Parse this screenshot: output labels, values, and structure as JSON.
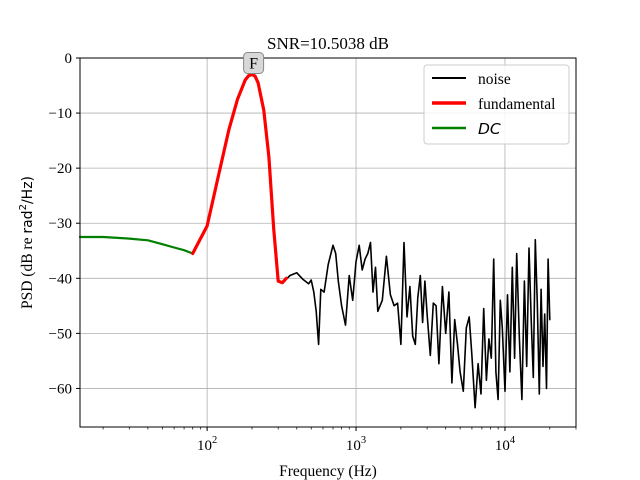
{
  "chart_data": {
    "type": "line",
    "title": "SNR=10.5038 dB",
    "xlabel": "Frequency (Hz)",
    "ylabel": {
      "prefix": "PSD (dB re ",
      "unit": "rad",
      "sup": "2",
      "suffix": "/Hz)"
    },
    "x_scale": "log",
    "xlim": [
      14,
      30000
    ],
    "ylim": [
      -67,
      0
    ],
    "grid": true,
    "legend_position": "top-right",
    "x_ticks": [
      {
        "value": 100,
        "base": "10",
        "exp": "2"
      },
      {
        "value": 1000,
        "base": "10",
        "exp": "3"
      },
      {
        "value": 10000,
        "base": "10",
        "exp": "4"
      }
    ],
    "y_ticks": [
      {
        "value": 0,
        "label": "0"
      },
      {
        "value": -10,
        "label": "−10"
      },
      {
        "value": -20,
        "label": "−20"
      },
      {
        "value": -30,
        "label": "−30"
      },
      {
        "value": -40,
        "label": "−40"
      },
      {
        "value": -50,
        "label": "−50"
      },
      {
        "value": -60,
        "label": "−60"
      }
    ],
    "annotation": {
      "text": "F",
      "x": 205,
      "y": -3
    },
    "series": [
      {
        "name": "noise",
        "color": "#000000",
        "x": [
          330,
          360,
          400,
          440,
          480,
          500,
          520,
          540,
          560,
          580,
          610,
          650,
          700,
          730,
          760,
          800,
          850,
          900,
          950,
          1000,
          1050,
          1100,
          1150,
          1200,
          1250,
          1300,
          1350,
          1400,
          1500,
          1600,
          1700,
          1800,
          1900,
          2000,
          2100,
          2200,
          2300,
          2400,
          2500,
          2600,
          2700,
          2800,
          2900,
          3000,
          3150,
          3300,
          3450,
          3600,
          3800,
          4000,
          4200,
          4400,
          4600,
          4800,
          5000,
          5250,
          5500,
          5750,
          6000,
          6300,
          6600,
          6900,
          7200,
          7500,
          7800,
          8100,
          8400,
          8700,
          9000,
          9300,
          9600,
          10000,
          10400,
          10800,
          11200,
          11600,
          12000,
          12500,
          13000,
          13500,
          14000,
          14500,
          15000,
          15500,
          16000,
          16500,
          17000,
          17500,
          18000,
          18500,
          19000,
          19500,
          20000
        ],
        "y": [
          -40.5,
          -39.5,
          -39.0,
          -40.2,
          -41.0,
          -40.3,
          -42.5,
          -46.0,
          -52.0,
          -42.0,
          -42.5,
          -37.5,
          -34.0,
          -35.5,
          -40.5,
          -45.0,
          -48.5,
          -39.5,
          -44.0,
          -37.0,
          -34.0,
          -38.5,
          -36.5,
          -35.5,
          -33.5,
          -42.5,
          -38.0,
          -46.0,
          -44.0,
          -36.0,
          -43.0,
          -45.0,
          -44.5,
          -52.0,
          -33.5,
          -47.0,
          -41.5,
          -50.5,
          -52.0,
          -43.5,
          -39.5,
          -48.0,
          -40.5,
          -46.5,
          -54.0,
          -44.5,
          -45.0,
          -55.5,
          -41.5,
          -50.0,
          -42.5,
          -59.0,
          -47.5,
          -52.0,
          -57.0,
          -60.5,
          -49.0,
          -47.0,
          -54.0,
          -63.5,
          -55.5,
          -61.0,
          -45.5,
          -58.5,
          -51.0,
          -54.5,
          -36.5,
          -57.0,
          -62.0,
          -44.0,
          -49.0,
          -60.5,
          -43.0,
          -57.0,
          -38.0,
          -54.5,
          -35.5,
          -51.0,
          -62.0,
          -40.5,
          -56.0,
          -34.5,
          -47.5,
          -58.0,
          -33.0,
          -44.5,
          -61.0,
          -42.0,
          -56.0,
          -46.5,
          -60.0,
          -36.5,
          -47.5
        ]
      },
      {
        "name": "fundamental",
        "color": "#ff0000",
        "x": [
          80,
          100,
          120,
          140,
          160,
          180,
          190,
          200,
          210,
          220,
          240,
          260,
          280,
          300,
          320,
          340
        ],
        "y": [
          -35.5,
          -30.5,
          -21.0,
          -13.0,
          -7.5,
          -4.0,
          -3.2,
          -3.0,
          -3.3,
          -4.5,
          -9.5,
          -18.0,
          -31.0,
          -40.5,
          -40.8,
          -40.0
        ]
      },
      {
        "name": "DC",
        "color": "#008000",
        "x": [
          14,
          20,
          30,
          40,
          50,
          60,
          70,
          80
        ],
        "y": [
          -32.5,
          -32.5,
          -32.8,
          -33.1,
          -33.8,
          -34.4,
          -34.9,
          -35.5
        ]
      }
    ]
  }
}
